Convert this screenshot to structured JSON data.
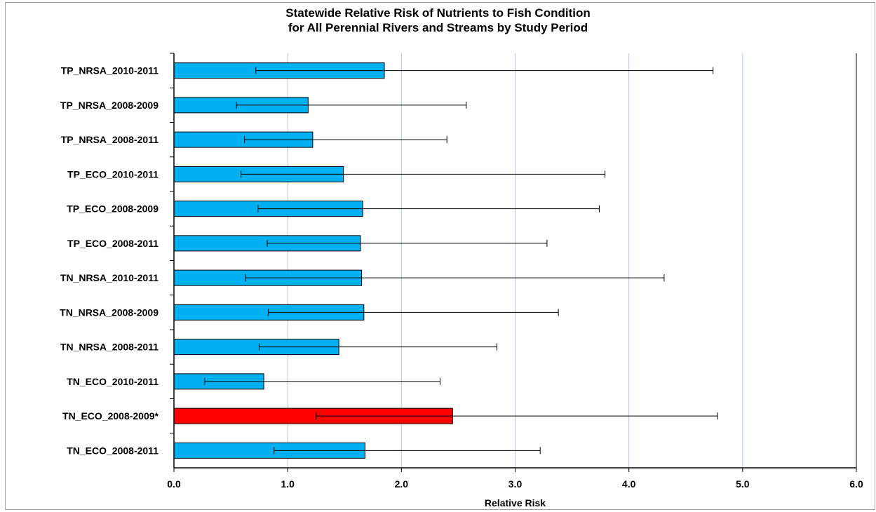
{
  "chart_data": {
    "type": "bar",
    "orientation": "horizontal",
    "title_lines": [
      "Statewide Relative Risk of Nutrients to Fish Condition",
      "for All Perennial Rivers and Streams by Study Period"
    ],
    "xlabel": "Relative Risk",
    "ylabel": "",
    "xlim": [
      0,
      6
    ],
    "x_ticks": [
      "0.0",
      "1.0",
      "2.0",
      "3.0",
      "4.0",
      "5.0",
      "6.0"
    ],
    "grid": "vertical",
    "categories": [
      "TP_NRSA_2010-2011",
      "TP_NRSA_2008-2009",
      "TP_NRSA_2008-2011",
      "TP_ECO_2010-2011",
      "TP_ECO_2008-2009",
      "TP_ECO_2008-2011",
      "TN_NRSA_2010-2011",
      "TN_NRSA_2008-2009",
      "TN_NRSA_2008-2011",
      "TN_ECO_2010-2011",
      "TN_ECO_2008-2009*",
      "TN_ECO_2008-2011"
    ],
    "values": [
      1.85,
      1.18,
      1.22,
      1.49,
      1.66,
      1.64,
      1.65,
      1.67,
      1.45,
      0.79,
      2.45,
      1.68
    ],
    "error_low": [
      0.72,
      0.55,
      0.62,
      0.59,
      0.74,
      0.82,
      0.63,
      0.83,
      0.75,
      0.27,
      1.25,
      0.88
    ],
    "error_high": [
      4.74,
      2.57,
      2.4,
      3.79,
      3.74,
      3.28,
      4.31,
      3.38,
      2.84,
      2.34,
      4.78,
      3.22
    ],
    "colors": {
      "default": "#00b0f0",
      "highlight": "#ff0000",
      "grid": "#b8c8e0",
      "bar_border": "#000000"
    },
    "highlighted_category": "TN_ECO_2008-2009*"
  }
}
